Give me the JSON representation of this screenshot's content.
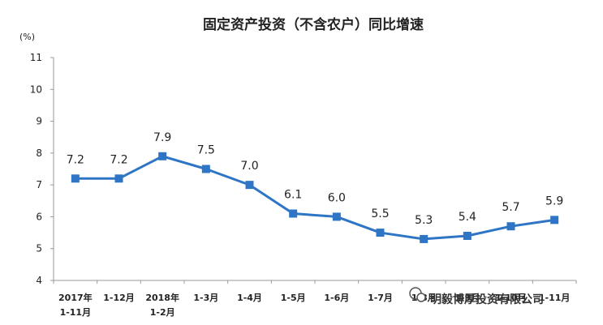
{
  "chart_data": {
    "type": "line",
    "title": "固定资产投资（不含农户）同比增速",
    "unit_label": "(%)",
    "ylim": [
      4,
      11
    ],
    "yticks": [
      4,
      5,
      6,
      7,
      8,
      9,
      10,
      11
    ],
    "grid": false,
    "categories": [
      [
        "2017年",
        "1-11月"
      ],
      [
        "1-12月"
      ],
      [
        "2018年",
        "1-2月"
      ],
      [
        "1-3月"
      ],
      [
        "1-4月"
      ],
      [
        "1-5月"
      ],
      [
        "1-6月"
      ],
      [
        "1-7月"
      ],
      [
        "1-8月"
      ],
      [
        "1-9月"
      ],
      [
        "1-10月"
      ],
      [
        "1-11月"
      ]
    ],
    "series": [
      {
        "values": [
          7.2,
          7.2,
          7.9,
          7.5,
          7.0,
          6.1,
          6.0,
          5.5,
          5.3,
          5.4,
          5.7,
          5.9
        ],
        "data_labels": [
          "7.2",
          "7.2",
          "7.9",
          "7.5",
          "7.0",
          "6.1",
          "6.0",
          "5.5",
          "5.3",
          "5.4",
          "5.7",
          "5.9"
        ],
        "color": "#2e75c6"
      }
    ]
  },
  "watermark": {
    "text": "明毅博厚投资有限公司",
    "icon": "wechat-icon"
  }
}
